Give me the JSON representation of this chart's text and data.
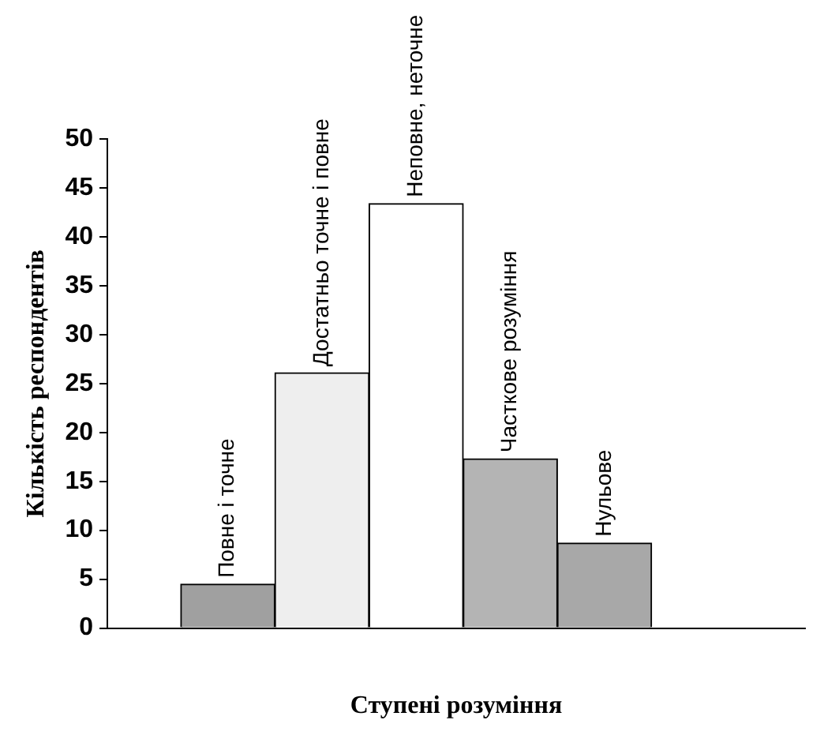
{
  "chart_data": {
    "type": "bar",
    "xlabel": "Ступені розуміння",
    "ylabel": "Кількість респондентів",
    "categories": [
      "Повне і точне",
      "Достатньо точне і повне",
      "Неповне, неточне",
      "Часткове розуміння",
      "Нульове"
    ],
    "values": [
      4.5,
      26.1,
      43.4,
      17.3,
      8.7
    ],
    "colors": [
      "#a0a0a0",
      "#eeeeee",
      "#ffffff",
      "#b4b4b4",
      "#a8a8a8"
    ],
    "ylim": [
      0,
      50
    ],
    "yticks": [
      0,
      5,
      10,
      15,
      20,
      25,
      30,
      35,
      40,
      45,
      50
    ],
    "grid": false,
    "legend": false
  }
}
